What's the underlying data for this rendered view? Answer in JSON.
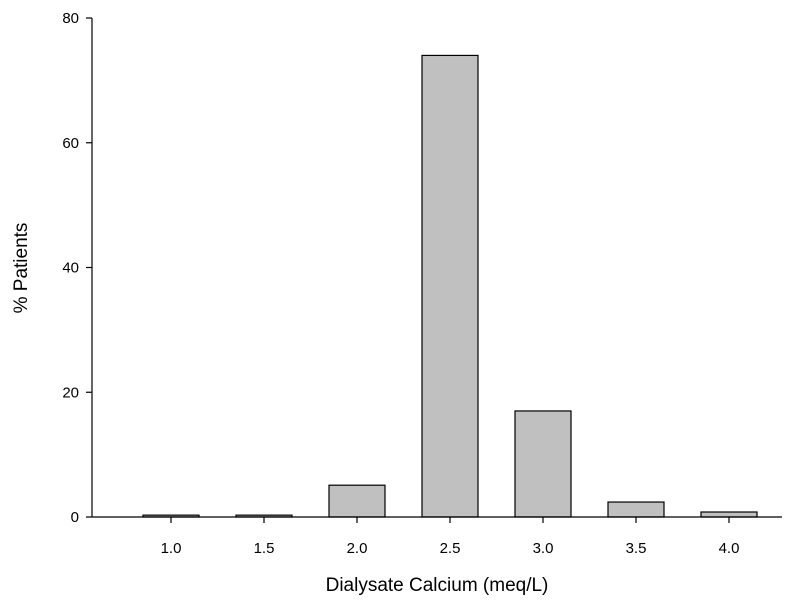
{
  "chart_data": {
    "type": "bar",
    "title": "",
    "xlabel": "Dialysate Calcium (meq/L)",
    "ylabel": "% Patients",
    "categories": [
      "1.0",
      "1.5",
      "2.0",
      "2.5",
      "3.0",
      "3.5",
      "4.0"
    ],
    "values": [
      0.3,
      0.3,
      5.1,
      74.0,
      17.0,
      2.4,
      0.8
    ],
    "ylim": [
      0,
      80
    ],
    "yticks": [
      "0",
      "20",
      "40",
      "60",
      "80"
    ],
    "grid": false,
    "legend": "none",
    "bar_color": "#c0c0c0",
    "edge_color": "#000000"
  }
}
